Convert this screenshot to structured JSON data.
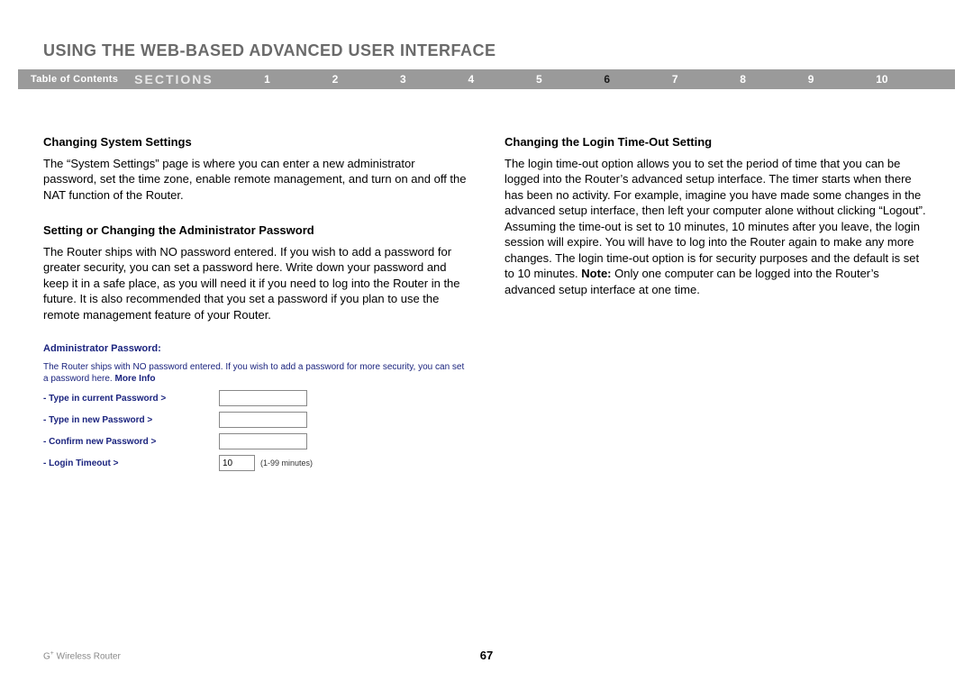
{
  "page_title": "USING THE WEB-BASED ADVANCED USER INTERFACE",
  "nav": {
    "toc_label": "Table of Contents",
    "sections_label": "SECTIONS",
    "numbers": [
      "1",
      "2",
      "3",
      "4",
      "5",
      "6",
      "7",
      "8",
      "9",
      "10"
    ],
    "active_index": 5
  },
  "left": {
    "h1": "Changing System Settings",
    "p1": "The “System Settings” page is where you can enter a new administrator password, set the time zone, enable remote management, and turn on and off the NAT function of the Router.",
    "h2": "Setting or Changing the Administrator Password",
    "p2": "The Router ships with NO password entered. If you wish to add a password for greater security, you can set a password here. Write down your password and keep it in a safe place, as you will need it if you need to log into the Router in the future. It is also recommended that you set a password if you plan to use the remote management feature of your Router."
  },
  "right": {
    "h1": "Changing the Login Time-Out Setting",
    "p1_a": "The login time-out option allows you to set the period of time that you can be logged into the Router’s advanced setup interface. The timer starts when there has been no activity. For example, imagine you have made some changes in the advanced setup interface, then left your computer alone without clicking “Logout”. Assuming the time-out is set to 10 minutes, 10 minutes after you leave, the login session will expire. You will have to log into the Router again to make any more changes. The login time-out option is for security purposes and the default is set to 10 minutes. ",
    "note_label": "Note:",
    "p1_b": " Only one computer can be logged into the Router’s advanced setup interface at one time."
  },
  "form": {
    "title": "Administrator Password:",
    "desc": "The Router ships with NO password entered. If you wish to add a password for more security, you can set a password here. ",
    "more_info": "More Info",
    "row1": "- Type in current Password >",
    "row2": "- Type in new Password >",
    "row3": "- Confirm new Password >",
    "row4": "- Login Timeout >",
    "timeout_value": "10",
    "timeout_hint": "(1-99 minutes)"
  },
  "footer": {
    "product_pre": "G",
    "product_sup": "+",
    "product_post": " Wireless Router",
    "page_number": "67"
  },
  "colors": {
    "title_gray": "#6a6a6a",
    "nav_bg": "#9a9a9a",
    "form_blue": "#1a237e",
    "footer_gray": "#888888"
  }
}
